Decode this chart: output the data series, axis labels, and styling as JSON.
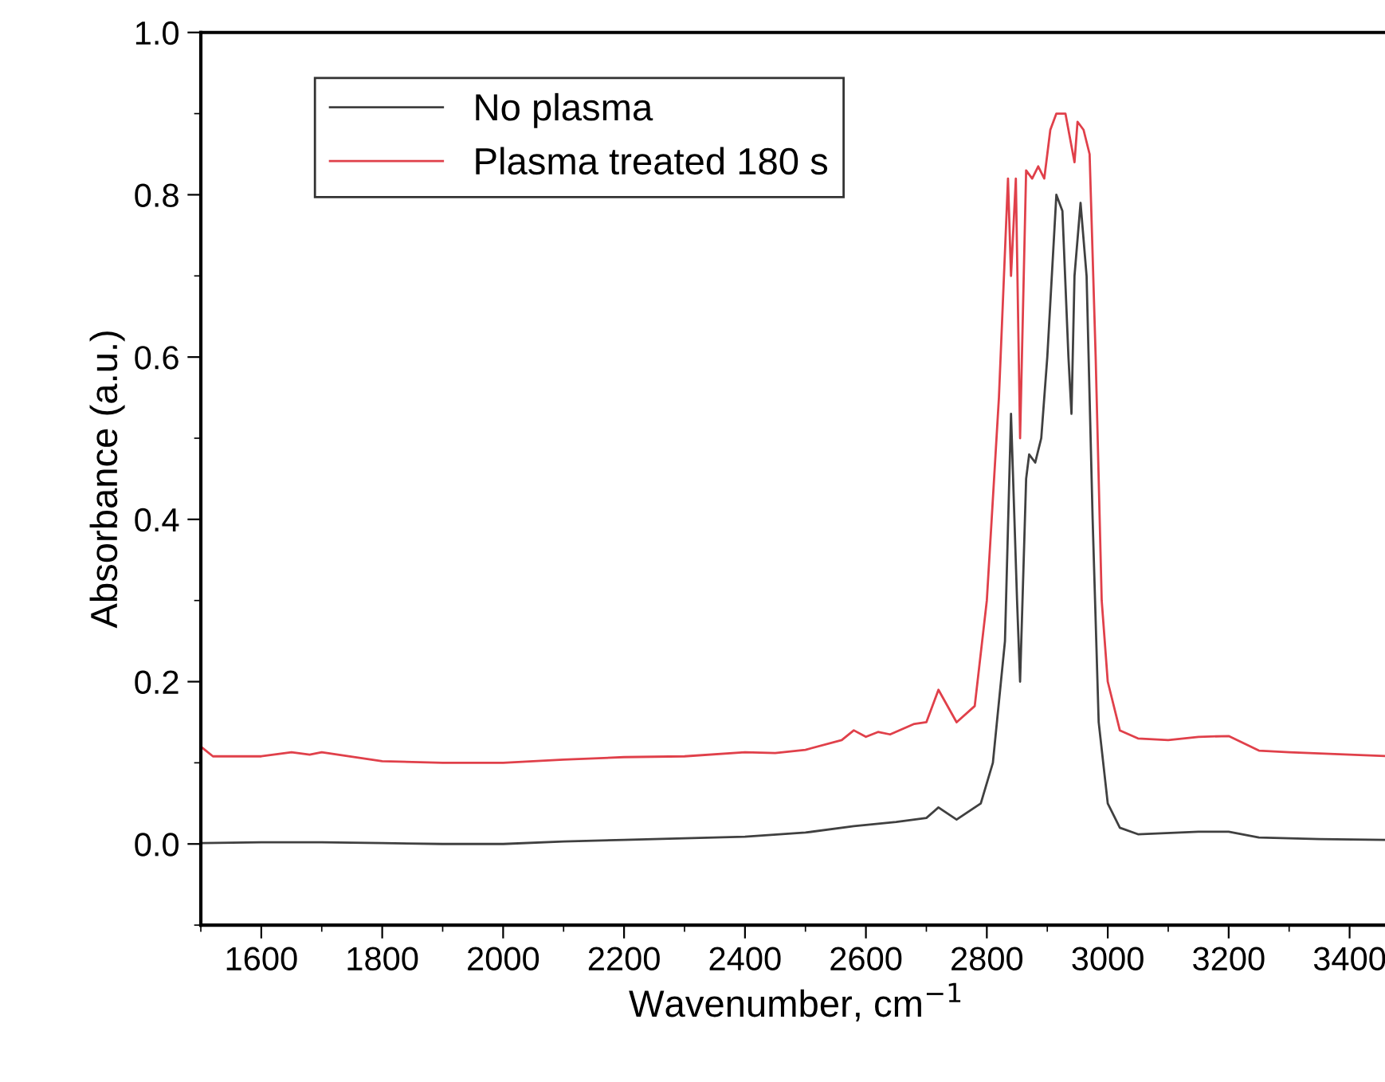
{
  "chart_data": {
    "type": "line",
    "xlabel": "Wavenumber, cm$^{−1}$",
    "ylabel": "Absorbance (a.u.)",
    "xlim": [
      1500,
      3470
    ],
    "xticks": [
      1600,
      1800,
      2000,
      2200,
      2400,
      2600,
      2800,
      3000,
      3200,
      3400
    ],
    "ylim": [
      -0.1,
      1.0
    ],
    "yticks": [
      {
        "value": 0,
        "label": "0.0"
      },
      0.2,
      0.4,
      0.6,
      0.8,
      {
        "value": 1,
        "label": "1.0"
      }
    ],
    "grid": false,
    "legend": "top left",
    "line_style": "solid",
    "marker": "none",
    "series": [
      {
        "name": "No plasma",
        "color": "#404040",
        "x": [
          1500,
          1600,
          1700,
          1800,
          1900,
          2000,
          2100,
          2200,
          2300,
          2400,
          2500,
          2580,
          2650,
          2700,
          2720,
          2750,
          2790,
          2810,
          2830,
          2840,
          2850,
          2855,
          2865,
          2870,
          2880,
          2890,
          2900,
          2915,
          2925,
          2935,
          2940,
          2945,
          2955,
          2965,
          2975,
          2985,
          3000,
          3020,
          3050,
          3150,
          3200,
          3250,
          3350,
          3470
        ],
        "values": [
          0.001,
          0.002,
          0.002,
          0.001,
          0.0,
          0.0,
          0.003,
          0.005,
          0.007,
          0.009,
          0.014,
          0.022,
          0.027,
          0.032,
          0.045,
          0.03,
          0.05,
          0.1,
          0.25,
          0.53,
          0.3,
          0.2,
          0.45,
          0.48,
          0.47,
          0.5,
          0.6,
          0.8,
          0.78,
          0.6,
          0.53,
          0.7,
          0.79,
          0.7,
          0.4,
          0.15,
          0.05,
          0.02,
          0.012,
          0.015,
          0.015,
          0.008,
          0.006,
          0.005
        ]
      },
      {
        "name": "Plasma treated 180 s",
        "color": "#e0404a",
        "x": [
          1500,
          1520,
          1600,
          1650,
          1680,
          1700,
          1800,
          1900,
          2000,
          2100,
          2200,
          2300,
          2400,
          2450,
          2500,
          2560,
          2580,
          2600,
          2620,
          2640,
          2680,
          2700,
          2720,
          2750,
          2780,
          2800,
          2820,
          2835,
          2840,
          2848,
          2855,
          2865,
          2875,
          2885,
          2895,
          2905,
          2915,
          2930,
          2940,
          2945,
          2950,
          2960,
          2970,
          2980,
          2990,
          3000,
          3020,
          3050,
          3100,
          3150,
          3200,
          3250,
          3300,
          3400,
          3470
        ],
        "values": [
          0.12,
          0.108,
          0.108,
          0.113,
          0.11,
          0.113,
          0.102,
          0.1,
          0.1,
          0.104,
          0.107,
          0.108,
          0.113,
          0.112,
          0.116,
          0.128,
          0.14,
          0.132,
          0.138,
          0.135,
          0.148,
          0.15,
          0.19,
          0.15,
          0.17,
          0.3,
          0.55,
          0.82,
          0.7,
          0.82,
          0.5,
          0.83,
          0.82,
          0.835,
          0.82,
          0.88,
          0.9,
          0.9,
          0.86,
          0.84,
          0.89,
          0.88,
          0.85,
          0.6,
          0.3,
          0.2,
          0.14,
          0.13,
          0.128,
          0.132,
          0.133,
          0.115,
          0.113,
          0.11,
          0.108
        ]
      }
    ]
  }
}
